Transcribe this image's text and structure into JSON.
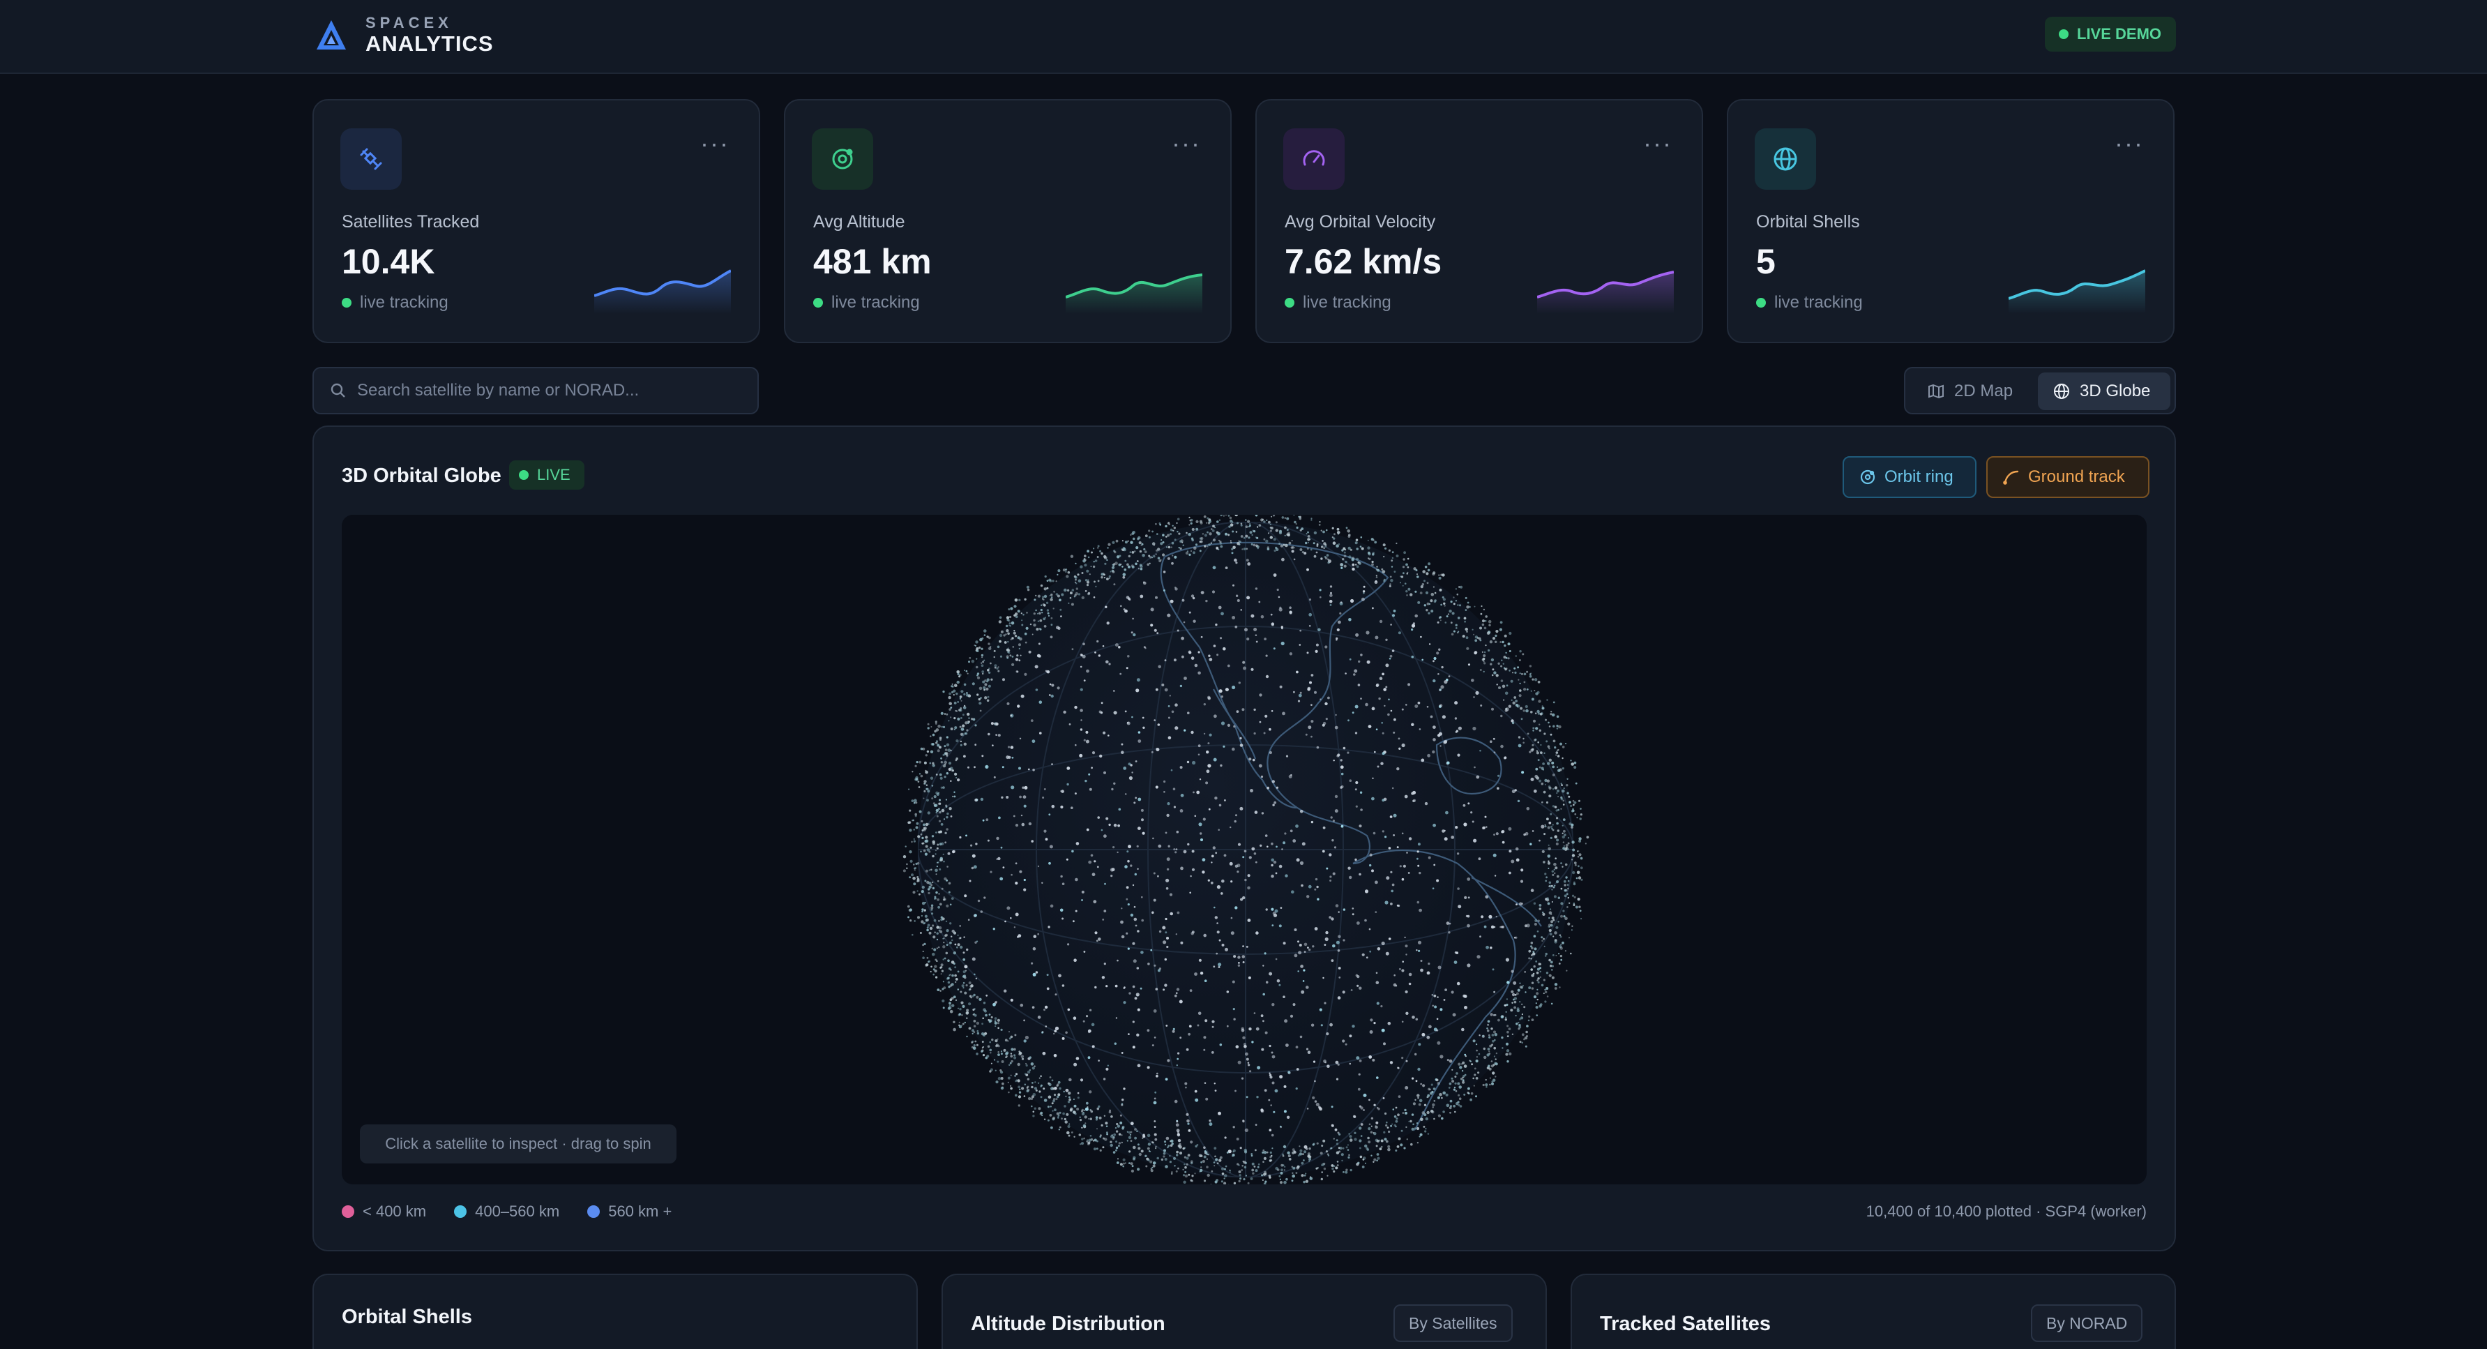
{
  "brand": {
    "top": "SPACEX",
    "name": "ANALYTICS",
    "logo_icon": "triangle-logo-icon"
  },
  "header": {
    "live_demo": "LIVE DEMO"
  },
  "kpis": [
    {
      "label": "Satellites Tracked",
      "value": "10.4K",
      "status": "live tracking",
      "icon": "satellite-icon",
      "accent": "#4f86f7"
    },
    {
      "label": "Avg Altitude",
      "value": "481 km",
      "status": "live tracking",
      "icon": "orbit-icon",
      "accent": "#3ecf8e"
    },
    {
      "label": "Avg Orbital Velocity",
      "value": "7.62 km/s",
      "status": "live tracking",
      "icon": "gauge-icon",
      "accent": "#a463f2"
    },
    {
      "label": "Orbital Shells",
      "value": "5",
      "status": "live tracking",
      "icon": "globe-icon",
      "accent": "#48c6e0"
    }
  ],
  "search": {
    "placeholder": "Search satellite by name or NORAD..."
  },
  "view_toggle": {
    "map_label": "2D Map",
    "globe_label": "3D Globe",
    "selected": "3D Globe"
  },
  "globe_panel": {
    "title": "3D Orbital Globe",
    "live_badge": "LIVE",
    "orbit_ring_label": "Orbit ring",
    "ground_track_label": "Ground track",
    "hint": "Click a satellite to inspect · drag to spin",
    "legend": [
      {
        "label": "< 400 km",
        "color": "#e0609a"
      },
      {
        "label": "400–560 km",
        "color": "#4cc3e6"
      },
      {
        "label": "560 km +",
        "color": "#5b8cf0"
      }
    ],
    "status": "10,400 of 10,400 plotted · SGP4 (worker)"
  },
  "bottom_panels": [
    {
      "title": "Orbital Shells",
      "pill": ""
    },
    {
      "title": "Altitude Distribution",
      "pill": "By Satellites"
    },
    {
      "title": "Tracked Satellites",
      "pill": "By NORAD"
    }
  ]
}
